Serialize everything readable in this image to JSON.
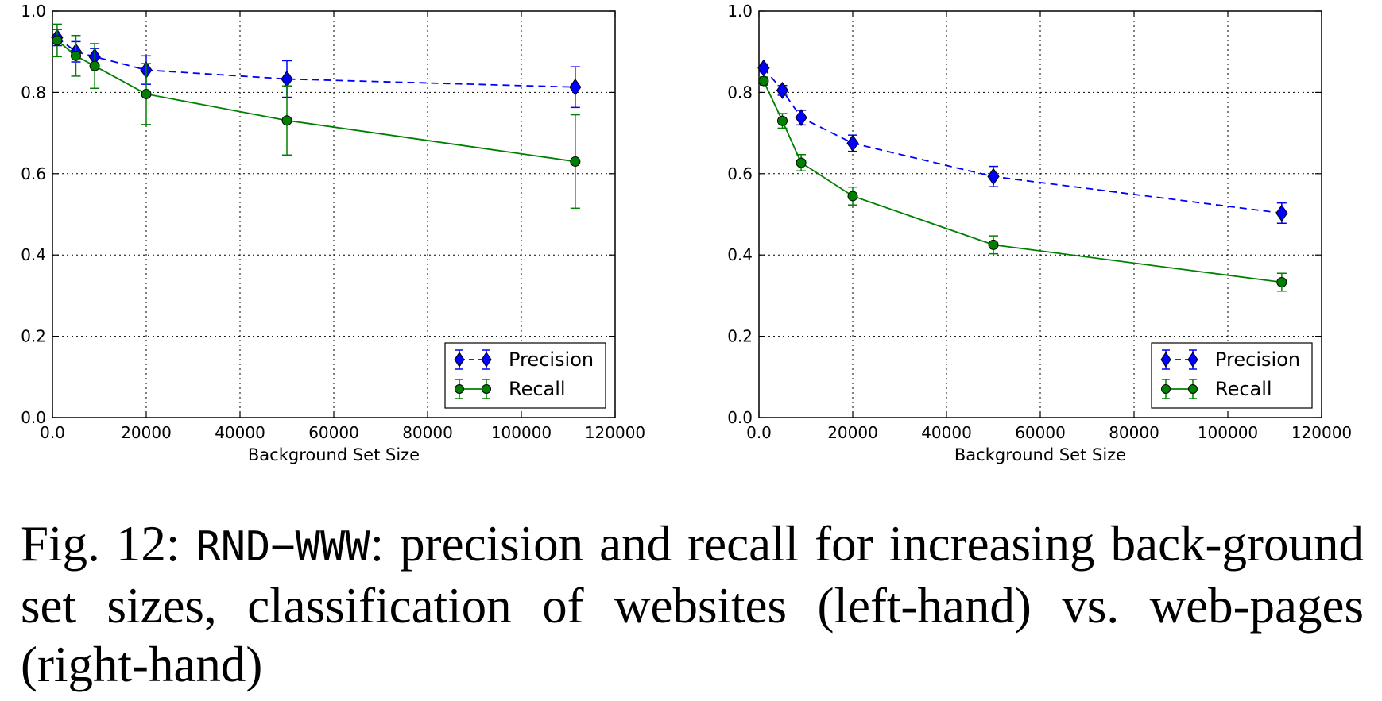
{
  "caption": {
    "prefix": "Fig. 12: ",
    "dataset": "RND−WWW",
    "text": ": precision and recall for increasing back-ground set sizes, classification of websites (left-hand) vs. web-pages (right-hand)"
  },
  "chart_data": [
    {
      "type": "line",
      "xlabel": "Background Set Size",
      "ylabel": "",
      "xlim": [
        0,
        120000
      ],
      "ylim": [
        0.0,
        1.0
      ],
      "xticks": [
        0,
        20000,
        40000,
        60000,
        80000,
        100000,
        120000
      ],
      "yticks": [
        0.0,
        0.2,
        0.4,
        0.6,
        0.8,
        1.0
      ],
      "grid": true,
      "legend_position": "lower-right",
      "series": [
        {
          "name": "Precision",
          "color": "#0000ff",
          "marker": "diamond",
          "linestyle": "dashed",
          "x": [
            1000,
            5000,
            9000,
            20000,
            50000,
            111500
          ],
          "y": [
            0.935,
            0.9,
            0.888,
            0.855,
            0.833,
            0.813
          ],
          "yerr": [
            0.02,
            0.025,
            0.02,
            0.035,
            0.045,
            0.05
          ]
        },
        {
          "name": "Recall",
          "color": "#008000",
          "marker": "circle",
          "linestyle": "solid",
          "x": [
            1000,
            5000,
            9000,
            20000,
            50000,
            111500
          ],
          "y": [
            0.928,
            0.89,
            0.865,
            0.796,
            0.731,
            0.63
          ],
          "yerr": [
            0.04,
            0.05,
            0.055,
            0.075,
            0.085,
            0.115
          ]
        }
      ]
    },
    {
      "type": "line",
      "xlabel": "Background Set Size",
      "ylabel": "",
      "xlim": [
        0,
        120000
      ],
      "ylim": [
        0.0,
        1.0
      ],
      "xticks": [
        0,
        20000,
        40000,
        60000,
        80000,
        100000,
        120000
      ],
      "yticks": [
        0.0,
        0.2,
        0.4,
        0.6,
        0.8,
        1.0
      ],
      "grid": true,
      "legend_position": "lower-right",
      "series": [
        {
          "name": "Precision",
          "color": "#0000ff",
          "marker": "diamond",
          "linestyle": "dashed",
          "x": [
            1000,
            5000,
            9000,
            20000,
            50000,
            111500
          ],
          "y": [
            0.86,
            0.805,
            0.738,
            0.675,
            0.593,
            0.503
          ],
          "yerr": [
            0.01,
            0.012,
            0.018,
            0.02,
            0.025,
            0.025
          ]
        },
        {
          "name": "Recall",
          "color": "#008000",
          "marker": "circle",
          "linestyle": "solid",
          "x": [
            1000,
            5000,
            9000,
            20000,
            50000,
            111500
          ],
          "y": [
            0.828,
            0.73,
            0.627,
            0.545,
            0.425,
            0.333
          ],
          "yerr": [
            0.01,
            0.018,
            0.02,
            0.022,
            0.022,
            0.022
          ]
        }
      ]
    }
  ]
}
